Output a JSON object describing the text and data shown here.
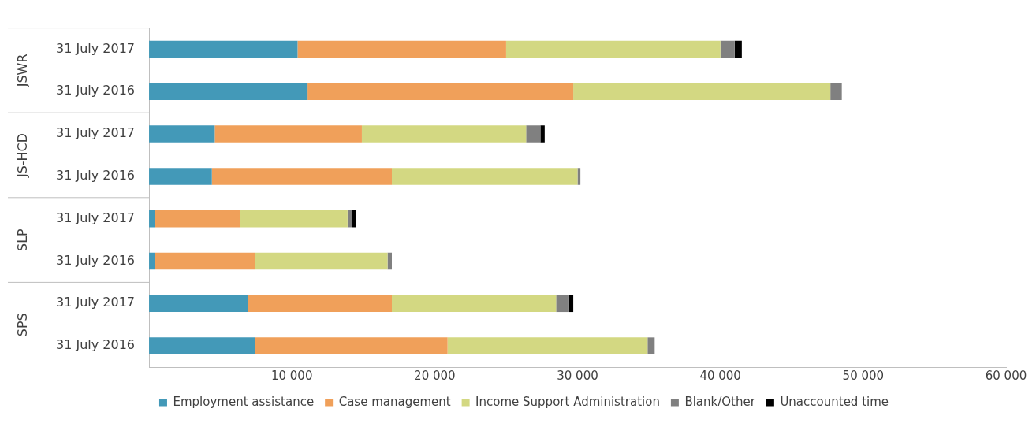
{
  "chart_data": {
    "type": "bar",
    "orientation": "horizontal",
    "stacked": true,
    "categories": [
      "31 July 2017",
      "31 July 2016",
      "31 July 2017",
      "31 July 2016",
      "31 July 2017",
      "31 July 2016",
      "31 July 2017",
      "31 July 2016"
    ],
    "annotations": [
      "JSWR",
      "JS-HCD",
      "SLP",
      "SPS"
    ],
    "series": [
      {
        "name": "Employment assistance",
        "color": "#4399b8",
        "values": [
          10400,
          11100,
          4600,
          4400,
          400,
          400,
          6900,
          7400
        ]
      },
      {
        "name": "Case management",
        "color": "#f0a05a",
        "values": [
          14600,
          18600,
          10300,
          12600,
          6000,
          7000,
          10100,
          13500
        ]
      },
      {
        "name": "Income Support Administration",
        "color": "#d3d882",
        "values": [
          15000,
          18000,
          11500,
          13000,
          7500,
          9300,
          11500,
          14000
        ]
      },
      {
        "name": "Blank/Other",
        "color": "#808080",
        "values": [
          1000,
          800,
          1000,
          200,
          300,
          300,
          900,
          500
        ]
      },
      {
        "name": "Unaccounted time",
        "color": "#000000",
        "values": [
          500,
          null,
          300,
          null,
          300,
          null,
          300,
          null
        ]
      }
    ],
    "xlim": [
      0,
      60000
    ],
    "xticks": [
      {
        "value": 0,
        "label": null
      },
      {
        "value": 10000,
        "label": "10 000"
      },
      {
        "value": 20000,
        "label": "20 000"
      },
      {
        "value": 30000,
        "label": "30 000"
      },
      {
        "value": 40000,
        "label": "40 000"
      },
      {
        "value": 50000,
        "label": "50 000"
      },
      {
        "value": 60000,
        "label": "60 000"
      }
    ],
    "grid": false,
    "legend": "bottom"
  }
}
